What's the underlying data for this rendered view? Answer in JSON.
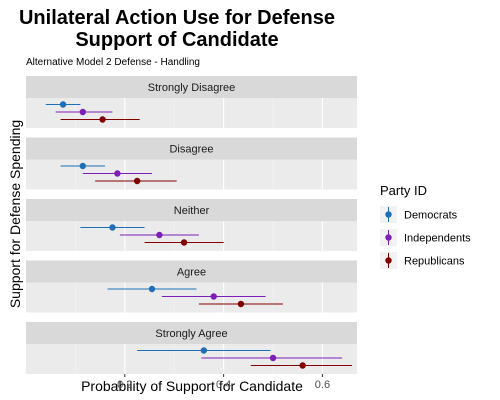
{
  "chart_data": {
    "type": "scatter",
    "title_lines": [
      "Unilateral Action Use for Defense",
      "Support of Candidate"
    ],
    "subtitle": "Alternative Model 2 Defense - Handling",
    "xlabel": "Probability of Support for Candidate",
    "ylabel": "Support for Defense Spending",
    "xlim": [
      0.0,
      0.67
    ],
    "x_ticks": [
      0.2,
      0.4,
      0.6
    ],
    "x_tick_labels": [
      "0.2",
      "0.4",
      "0.6"
    ],
    "grid": true,
    "legend": {
      "title": "Party ID",
      "placement": "right"
    },
    "panels": [
      "Strongly Disagree",
      "Disagree",
      "Neither",
      "Agree",
      "Strongly Agree"
    ],
    "series": [
      {
        "name": "Democrats",
        "color": "#1f6fb8",
        "estimates": [
          0.075,
          0.115,
          0.175,
          0.255,
          0.36
        ],
        "lower": [
          0.04,
          0.07,
          0.11,
          0.165,
          0.225
        ],
        "upper": [
          0.11,
          0.16,
          0.24,
          0.345,
          0.495
        ]
      },
      {
        "name": "Independents",
        "color": "#7b1fb8",
        "estimates": [
          0.115,
          0.185,
          0.27,
          0.38,
          0.5
        ],
        "lower": [
          0.06,
          0.115,
          0.19,
          0.275,
          0.355
        ],
        "upper": [
          0.175,
          0.255,
          0.35,
          0.485,
          0.64
        ]
      },
      {
        "name": "Republicans",
        "color": "#800000",
        "estimates": [
          0.155,
          0.225,
          0.32,
          0.435,
          0.56
        ],
        "lower": [
          0.07,
          0.14,
          0.24,
          0.35,
          0.455
        ],
        "upper": [
          0.23,
          0.305,
          0.4,
          0.52,
          0.66
        ]
      }
    ]
  }
}
